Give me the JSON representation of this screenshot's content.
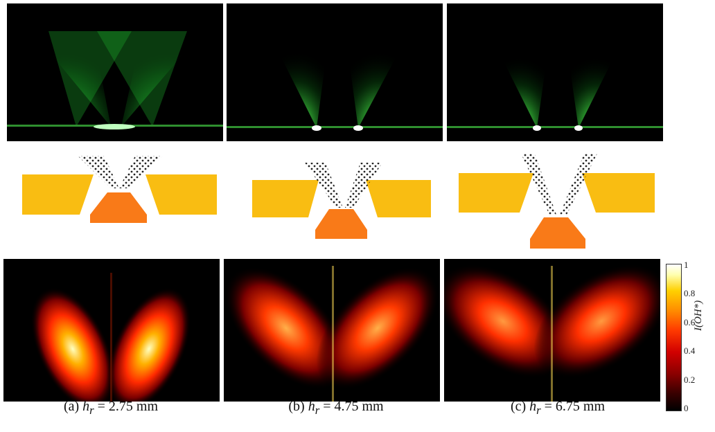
{
  "figure": {
    "panels": [
      {
        "label_prefix": "(a)",
        "hr_value": "2.75",
        "unit": "mm"
      },
      {
        "label_prefix": "(b)",
        "hr_value": "4.75",
        "unit": "mm"
      },
      {
        "label_prefix": "(c)",
        "hr_value": "6.75",
        "unit": "mm"
      }
    ],
    "colorbar": {
      "label": "I(OH*)",
      "ticks": [
        "1",
        "0.8",
        "0.6",
        "0.4",
        "0.2",
        "0"
      ]
    },
    "colors": {
      "spray": "#2bd23a",
      "nozzle_body": "#f9bd12",
      "swirler": "#f97a18",
      "heat_high": "#ffffa0",
      "heat_mid": "#ff3300",
      "heat_low": "#5a0000"
    }
  }
}
